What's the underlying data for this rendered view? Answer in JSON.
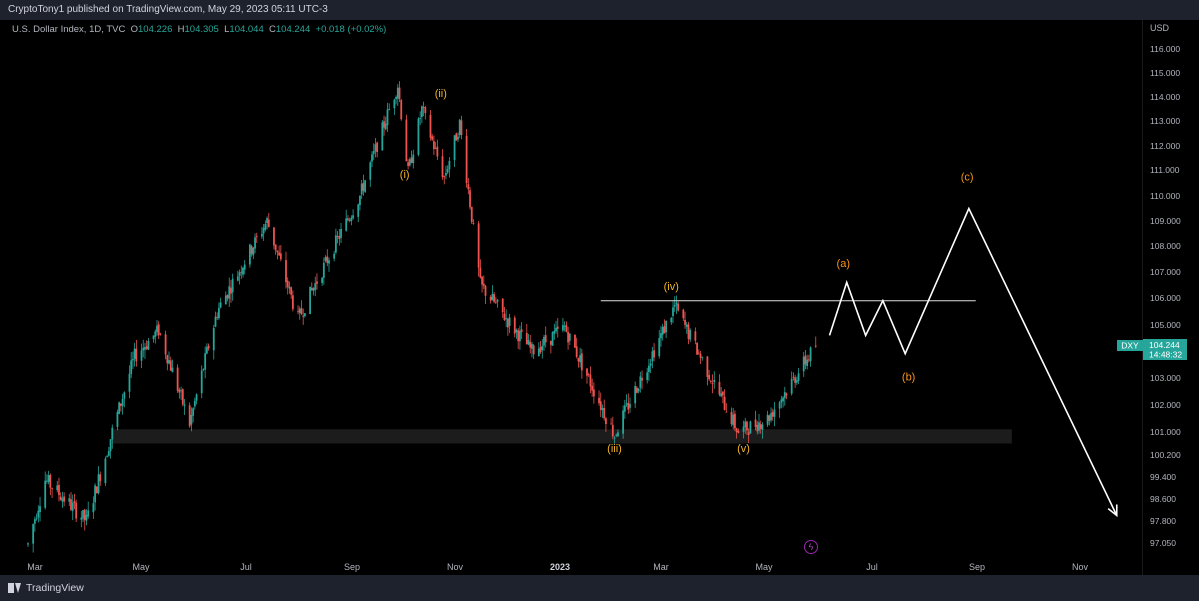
{
  "header": {
    "publisher_text": "CryptoTony1 published on TradingView.com, May 29, 2023 05:11 UTC-3"
  },
  "legend": {
    "symbol": "U.S. Dollar Index, 1D, TVC",
    "open": "104.226",
    "high": "104.305",
    "low": "104.044",
    "close": "104.244",
    "change": "+0.018 (+0.02%)"
  },
  "scale": {
    "currency": "USD"
  },
  "price_tag": {
    "ticker": "DXY",
    "price": "104.244",
    "countdown": "14:48:32"
  },
  "footer": {
    "brand": "TradingView"
  },
  "colors": {
    "up": "#26a69a",
    "down": "#ef5350",
    "wave_label": "#f0b429",
    "abc_label": "#f7931a",
    "projection": "#ffffff"
  },
  "icons": {
    "flash": "lightning-icon",
    "logo": "tradingview-logo-icon"
  },
  "chart_data": {
    "type": "candlestick",
    "title": "U.S. Dollar Index, 1D, TVC",
    "xlabel": "",
    "ylabel": "",
    "ylim": [
      96.5,
      116.5
    ],
    "y_ticks": [
      "116.000",
      "115.000",
      "114.000",
      "113.000",
      "112.000",
      "111.000",
      "110.000",
      "109.000",
      "108.000",
      "107.000",
      "106.000",
      "105.000",
      "104.000",
      "103.000",
      "102.000",
      "101.000",
      "100.200",
      "99.400",
      "98.600",
      "97.800",
      "97.050"
    ],
    "x_ticks": [
      "Mar",
      "May",
      "Jul",
      "Sep",
      "Nov",
      "2023",
      "Mar",
      "May",
      "Jul",
      "Sep",
      "Nov"
    ],
    "path_points": [
      {
        "date": "2022-02-25",
        "value": 97.0
      },
      {
        "date": "2022-03-07",
        "value": 99.3
      },
      {
        "date": "2022-03-31",
        "value": 97.8
      },
      {
        "date": "2022-04-28",
        "value": 103.8
      },
      {
        "date": "2022-05-12",
        "value": 104.8
      },
      {
        "date": "2022-05-30",
        "value": 101.3
      },
      {
        "date": "2022-06-15",
        "value": 105.5
      },
      {
        "date": "2022-07-14",
        "value": 109.0
      },
      {
        "date": "2022-08-01",
        "value": 105.2
      },
      {
        "date": "2022-09-06",
        "value": 110.0
      },
      {
        "date": "2022-09-28",
        "value": 114.5
      },
      {
        "date": "2022-10-04",
        "value": 110.9
      },
      {
        "date": "2022-10-12",
        "value": 113.5
      },
      {
        "date": "2022-10-25",
        "value": 110.7
      },
      {
        "date": "2022-11-03",
        "value": 112.9
      },
      {
        "date": "2022-11-15",
        "value": 106.5
      },
      {
        "date": "2022-12-15",
        "value": 104.0
      },
      {
        "date": "2023-01-03",
        "value": 104.9
      },
      {
        "date": "2023-02-01",
        "value": 100.9
      },
      {
        "date": "2023-03-08",
        "value": 105.7
      },
      {
        "date": "2023-04-14",
        "value": 101.0
      },
      {
        "date": "2023-05-01",
        "value": 101.5
      },
      {
        "date": "2023-05-29",
        "value": 104.2
      }
    ],
    "projection": [
      {
        "date": "2023-06-06",
        "value": 104.6
      },
      {
        "date": "2023-06-16",
        "value": 106.6
      },
      {
        "date": "2023-06-27",
        "value": 104.6
      },
      {
        "date": "2023-07-07",
        "value": 105.9
      },
      {
        "date": "2023-07-20",
        "value": 103.9
      },
      {
        "date": "2023-08-26",
        "value": 109.5
      },
      {
        "date": "2023-11-20",
        "value": 98.0
      }
    ],
    "resistance_line": {
      "value": 105.9,
      "from": "2023-01-24",
      "to": "2023-08-30"
    },
    "support_zone": {
      "low": 100.6,
      "high": 101.1,
      "from": "2022-04-15",
      "to": "2023-09-20"
    },
    "wave_labels": [
      {
        "text": "(i)",
        "date": "2022-10-02",
        "value": 110.7
      },
      {
        "text": "(ii)",
        "date": "2022-10-23",
        "value": 114.0
      },
      {
        "text": "(iii)",
        "date": "2023-02-01",
        "value": 100.3
      },
      {
        "text": "(iv)",
        "date": "2023-03-06",
        "value": 106.3
      },
      {
        "text": "(v)",
        "date": "2023-04-17",
        "value": 100.3
      }
    ],
    "correction_labels": [
      {
        "text": "(a)",
        "date": "2023-06-14",
        "value": 107.2
      },
      {
        "text": "(b)",
        "date": "2023-07-22",
        "value": 102.9
      },
      {
        "text": "(c)",
        "date": "2023-08-25",
        "value": 110.6
      }
    ]
  }
}
